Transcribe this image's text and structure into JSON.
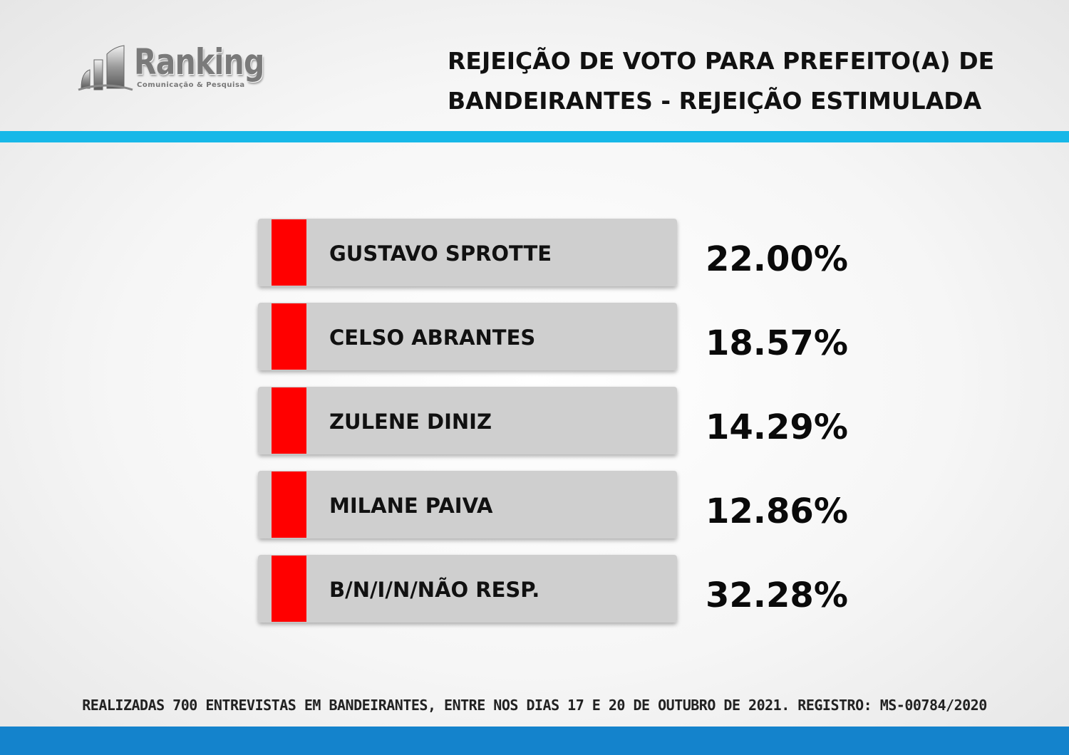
{
  "brand": {
    "name": "Ranking",
    "tagline": "Comunicação & Pesquisa"
  },
  "title_line1": "REJEIÇÃO DE VOTO PARA PREFEITO(A) DE",
  "title_line2": "BANDEIRANTES - REJEIÇÃO ESTIMULADA",
  "chart_data": {
    "type": "bar",
    "title": "REJEIÇÃO DE VOTO PARA PREFEITO(A) DE BANDEIRANTES - REJEIÇÃO ESTIMULADA",
    "categories": [
      "GUSTAVO SPROTTE",
      "CELSO ABRANTES",
      "ZULENE DINIZ",
      "MILANE PAIVA",
      "B/N/I/N/NÃO RESP."
    ],
    "values": [
      22.0,
      18.57,
      14.29,
      12.86,
      32.28
    ],
    "value_labels": [
      "22.00%",
      "18.57%",
      "14.29%",
      "12.86%",
      "32.28%"
    ],
    "unit": "%",
    "xlabel": "",
    "ylabel": "",
    "legend": "none",
    "grid": false
  },
  "colors": {
    "accent_red": "#ff0000",
    "bar_grey": "#cfcfcf",
    "band_cyan": "#17b8e8",
    "band_blue": "#1483cc"
  },
  "footer": "REALIZADAS 700 ENTREVISTAS EM BANDEIRANTES, ENTRE NOS DIAS 17 E 20 DE OUTUBRO DE 2021. REGISTRO: MS-00784/2020"
}
